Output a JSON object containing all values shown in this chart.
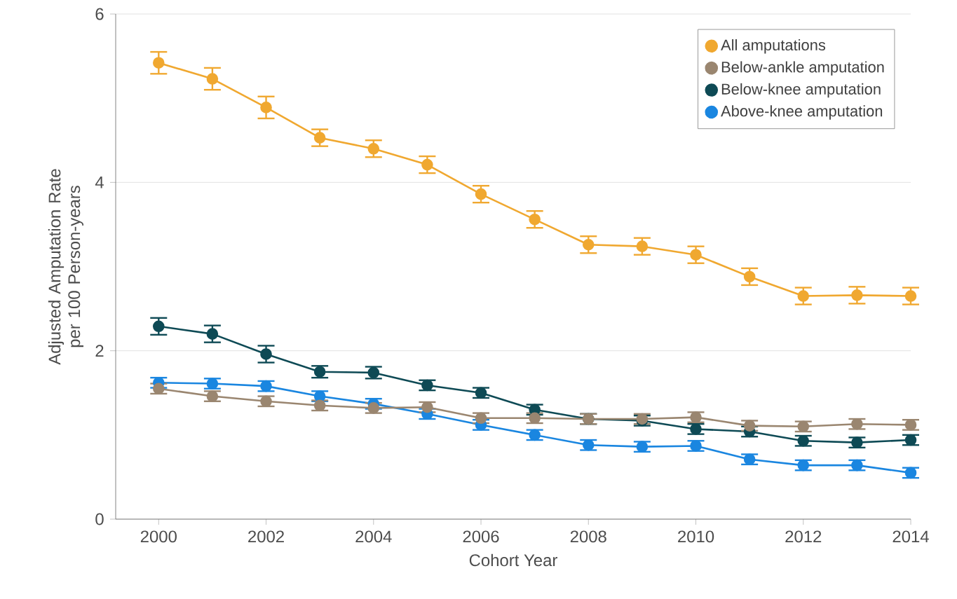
{
  "chart_data": {
    "type": "line",
    "xlabel": "Cohort Year",
    "ylabel": "Adjusted Amputation Rate per 100 Person-years",
    "x": [
      2000,
      2001,
      2002,
      2003,
      2004,
      2005,
      2006,
      2007,
      2008,
      2009,
      2010,
      2011,
      2012,
      2013,
      2014
    ],
    "xlim": [
      1999.2,
      2014
    ],
    "xticks": [
      2000,
      2002,
      2004,
      2006,
      2008,
      2010,
      2012,
      2014
    ],
    "ylim": [
      0,
      6
    ],
    "yticks": [
      0,
      2,
      4,
      6
    ],
    "grid": "y",
    "legend": "top right",
    "marker": "circle",
    "line_style": "solid",
    "series": [
      {
        "name": "All amputations",
        "color": "#f0a830",
        "values": [
          5.42,
          5.23,
          4.89,
          4.53,
          4.4,
          4.21,
          3.86,
          3.56,
          3.26,
          3.24,
          3.14,
          2.88,
          2.65,
          2.66,
          2.65
        ],
        "errors": [
          0.13,
          0.13,
          0.13,
          0.1,
          0.1,
          0.1,
          0.1,
          0.1,
          0.1,
          0.1,
          0.1,
          0.1,
          0.1,
          0.1,
          0.1
        ]
      },
      {
        "name": "Below-ankle amputation",
        "color": "#9a8670",
        "values": [
          1.55,
          1.46,
          1.4,
          1.35,
          1.32,
          1.33,
          1.2,
          1.2,
          1.19,
          1.19,
          1.21,
          1.11,
          1.1,
          1.13,
          1.12
        ],
        "errors": [
          0.06,
          0.06,
          0.06,
          0.06,
          0.06,
          0.06,
          0.06,
          0.06,
          0.06,
          0.06,
          0.06,
          0.06,
          0.06,
          0.06,
          0.06
        ]
      },
      {
        "name": "Below-knee amputation",
        "color": "#0e4a55",
        "values": [
          2.29,
          2.2,
          1.96,
          1.75,
          1.74,
          1.59,
          1.5,
          1.3,
          1.19,
          1.17,
          1.07,
          1.04,
          0.93,
          0.91,
          0.94
        ],
        "errors": [
          0.1,
          0.1,
          0.1,
          0.07,
          0.07,
          0.06,
          0.06,
          0.06,
          0.06,
          0.06,
          0.06,
          0.06,
          0.06,
          0.06,
          0.06
        ]
      },
      {
        "name": "Above-knee amputation",
        "color": "#1a86e0",
        "values": [
          1.62,
          1.61,
          1.58,
          1.46,
          1.37,
          1.25,
          1.12,
          1.0,
          0.88,
          0.86,
          0.87,
          0.71,
          0.64,
          0.64,
          0.55
        ],
        "errors": [
          0.06,
          0.06,
          0.06,
          0.06,
          0.06,
          0.06,
          0.06,
          0.06,
          0.06,
          0.06,
          0.06,
          0.06,
          0.06,
          0.06,
          0.06
        ]
      }
    ]
  }
}
